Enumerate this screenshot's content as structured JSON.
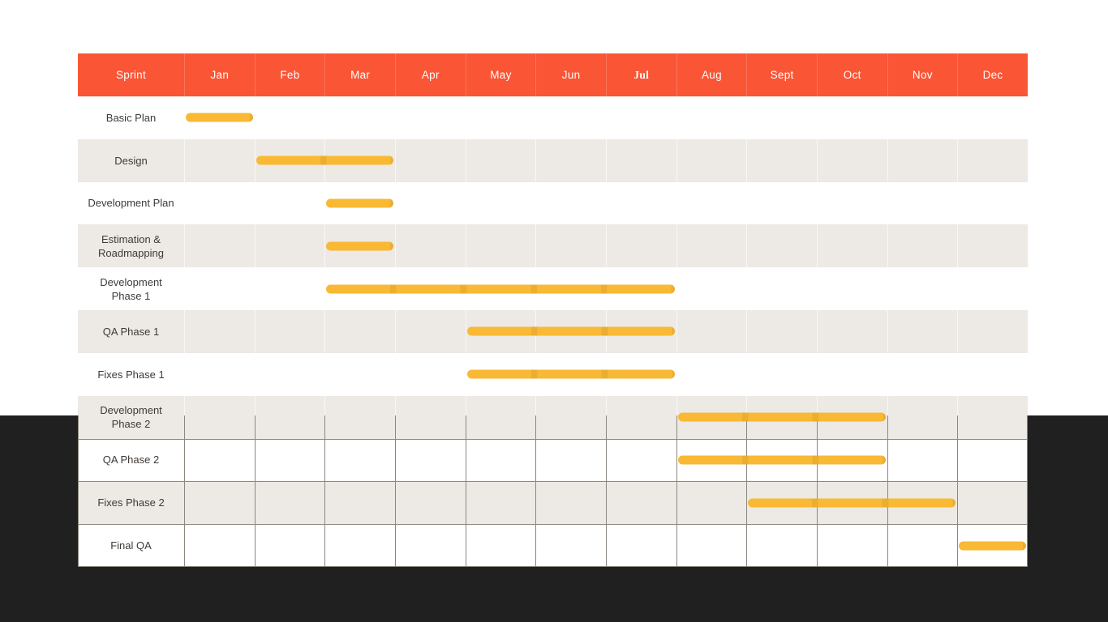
{
  "page": {
    "background_color": "#ffffff",
    "dark_band_color": "#202020"
  },
  "gantt": {
    "header": {
      "sprint_label": "Sprint",
      "background": "#FA5535",
      "text_color": "#ffffff",
      "months": [
        {
          "label": "Jan"
        },
        {
          "label": "Feb"
        },
        {
          "label": "Mar"
        },
        {
          "label": "Apr"
        },
        {
          "label": "May"
        },
        {
          "label": "Jun"
        },
        {
          "label": "Jul",
          "font": "serif"
        },
        {
          "label": "Aug"
        },
        {
          "label": "Sept"
        },
        {
          "label": "Oct"
        },
        {
          "label": "Nov"
        },
        {
          "label": "Dec"
        }
      ]
    },
    "colors": {
      "bar": "#F9B934",
      "row_white": "#FFFFFF",
      "row_beige": "#EDE9E4",
      "grid_line": "#8d8780",
      "label_text": "#3E3A36"
    },
    "rows": [
      {
        "label": "Basic Plan",
        "start": 0,
        "end": 0,
        "start_month": "Jan",
        "end_month": "Jan"
      },
      {
        "label": "Design",
        "start": 1,
        "end": 2,
        "start_month": "Feb",
        "end_month": "Mar"
      },
      {
        "label": "Development Plan",
        "start": 2,
        "end": 2,
        "start_month": "Mar",
        "end_month": "Mar"
      },
      {
        "label": "Estimation & Roadmapping",
        "start": 2,
        "end": 2,
        "start_month": "Mar",
        "end_month": "Mar"
      },
      {
        "label": "Development Phase 1",
        "start": 2,
        "end": 6,
        "start_month": "Mar",
        "end_month": "Jul"
      },
      {
        "label": "QA Phase 1",
        "start": 4,
        "end": 6,
        "start_month": "May",
        "end_month": "Jul"
      },
      {
        "label": "Fixes Phase 1",
        "start": 4,
        "end": 6,
        "start_month": "May",
        "end_month": "Jul"
      },
      {
        "label": "Development Phase 2",
        "start": 7,
        "end": 9,
        "start_month": "Aug",
        "end_month": "Oct"
      },
      {
        "label": "QA Phase 2",
        "start": 7,
        "end": 9,
        "start_month": "Aug",
        "end_month": "Oct"
      },
      {
        "label": "Fixes Phase 2",
        "start": 8,
        "end": 10,
        "start_month": "Sept",
        "end_month": "Nov"
      },
      {
        "label": "Final QA",
        "start": 11,
        "end": 11,
        "start_month": "Dec",
        "end_month": "Dec"
      }
    ]
  },
  "chart_data": {
    "type": "bar",
    "subtype": "gantt",
    "x_axis": {
      "unit": "month",
      "labels": [
        "Jan",
        "Feb",
        "Mar",
        "Apr",
        "May",
        "Jun",
        "Jul",
        "Aug",
        "Sept",
        "Oct",
        "Nov",
        "Dec"
      ]
    },
    "legend": null,
    "grid": "partial (visible only over dark lower band)",
    "tasks": [
      {
        "name": "Basic Plan",
        "start": "Jan",
        "end": "Jan"
      },
      {
        "name": "Design",
        "start": "Feb",
        "end": "Mar"
      },
      {
        "name": "Development Plan",
        "start": "Mar",
        "end": "Mar"
      },
      {
        "name": "Estimation & Roadmapping",
        "start": "Mar",
        "end": "Mar"
      },
      {
        "name": "Development Phase 1",
        "start": "Mar",
        "end": "Jul"
      },
      {
        "name": "QA Phase 1",
        "start": "May",
        "end": "Jul"
      },
      {
        "name": "Fixes Phase 1",
        "start": "May",
        "end": "Jul"
      },
      {
        "name": "Development Phase 2",
        "start": "Aug",
        "end": "Oct"
      },
      {
        "name": "QA Phase 2",
        "start": "Aug",
        "end": "Oct"
      },
      {
        "name": "Fixes Phase 2",
        "start": "Sept",
        "end": "Nov"
      },
      {
        "name": "Final QA",
        "start": "Dec",
        "end": "Dec"
      }
    ]
  }
}
